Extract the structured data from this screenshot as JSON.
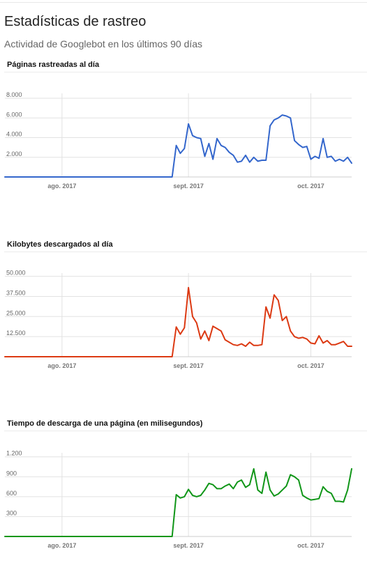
{
  "header": {
    "title": "Estadísticas de rastreo",
    "subtitle": "Actividad de Googlebot en los últimos 90 días"
  },
  "chart_data": [
    {
      "type": "line",
      "title": "Páginas rastreadas al día",
      "color": "#3366cc",
      "xlabel": "",
      "ylabel": "",
      "x_tick_labels": [
        "ago. 2017",
        "sept. 2017",
        "oct. 2017"
      ],
      "x_tick_days": [
        14,
        45,
        75
      ],
      "y_tick_labels": [
        "2.000",
        "4.000",
        "6.000",
        "8.000"
      ],
      "y_ticks": [
        2000,
        4000,
        6000,
        8000
      ],
      "ylim": [
        0,
        8500
      ],
      "grid": true,
      "legend": "none",
      "x": [
        0,
        41,
        42,
        43,
        44,
        45,
        46,
        47,
        48,
        49,
        50,
        51,
        52,
        53,
        54,
        55,
        56,
        57,
        58,
        59,
        60,
        61,
        62,
        63,
        64,
        65,
        66,
        67,
        68,
        69,
        70,
        71,
        72,
        73,
        74,
        75,
        76,
        77,
        78,
        79,
        80,
        81,
        82,
        83,
        84,
        85
      ],
      "values": [
        0,
        0,
        3200,
        2400,
        2900,
        5400,
        4200,
        4000,
        3900,
        2100,
        3400,
        1800,
        3900,
        3200,
        3000,
        2500,
        2200,
        1500,
        1600,
        2200,
        1500,
        2000,
        1600,
        1700,
        1700,
        5200,
        5800,
        6000,
        6300,
        6200,
        6000,
        3700,
        3300,
        3000,
        3100,
        1800,
        2100,
        1900,
        3900,
        2000,
        2100,
        1600,
        1800,
        1600,
        2000,
        1400
      ],
      "xlim": [
        0,
        85
      ]
    },
    {
      "type": "line",
      "title": "Kilobytes descargados al día",
      "color": "#dc3912",
      "xlabel": "",
      "ylabel": "",
      "x_tick_labels": [
        "ago. 2017",
        "sept. 2017",
        "oct. 2017"
      ],
      "x_tick_days": [
        14,
        45,
        75
      ],
      "y_tick_labels": [
        "12.500",
        "25.000",
        "37.500",
        "50.000"
      ],
      "y_ticks": [
        12500,
        25000,
        37500,
        50000
      ],
      "ylim": [
        0,
        52000
      ],
      "grid": true,
      "legend": "none",
      "x": [
        0,
        41,
        42,
        43,
        44,
        45,
        46,
        47,
        48,
        49,
        50,
        51,
        52,
        53,
        54,
        55,
        56,
        57,
        58,
        59,
        60,
        61,
        62,
        63,
        64,
        65,
        66,
        67,
        68,
        69,
        70,
        71,
        72,
        73,
        74,
        75,
        76,
        77,
        78,
        79,
        80,
        81,
        82,
        83,
        84,
        85
      ],
      "values": [
        0,
        0,
        18500,
        14000,
        18000,
        43000,
        25000,
        21000,
        11000,
        16000,
        10000,
        19000,
        17500,
        16000,
        10500,
        9000,
        7500,
        7000,
        8000,
        6500,
        9000,
        7000,
        7000,
        7500,
        31000,
        24000,
        38500,
        35000,
        22500,
        25000,
        16000,
        12500,
        11500,
        12000,
        11000,
        8500,
        8000,
        13000,
        8500,
        10000,
        7500,
        7500,
        8500,
        9500,
        6500,
        6500
      ],
      "xlim": [
        0,
        85
      ]
    },
    {
      "type": "line",
      "title": "Tiempo de descarga de una página (en milisegundos)",
      "color": "#109618",
      "xlabel": "",
      "ylabel": "",
      "x_tick_labels": [
        "ago. 2017",
        "sept. 2017",
        "oct. 2017"
      ],
      "x_tick_days": [
        14,
        45,
        75
      ],
      "y_tick_labels": [
        "300",
        "600",
        "900",
        "1.200"
      ],
      "y_ticks": [
        300,
        600,
        900,
        1200
      ],
      "ylim": [
        0,
        1260
      ],
      "grid": true,
      "legend": "none",
      "x": [
        0,
        41,
        42,
        43,
        44,
        45,
        46,
        47,
        48,
        49,
        50,
        51,
        52,
        53,
        54,
        55,
        56,
        57,
        58,
        59,
        60,
        61,
        62,
        63,
        64,
        65,
        66,
        67,
        68,
        69,
        70,
        71,
        72,
        73,
        74,
        75,
        76,
        77,
        78,
        79,
        80,
        81,
        82,
        83,
        84,
        85
      ],
      "values": [
        0,
        0,
        630,
        580,
        600,
        710,
        620,
        600,
        620,
        700,
        800,
        780,
        720,
        720,
        760,
        790,
        720,
        820,
        850,
        740,
        780,
        1020,
        700,
        650,
        970,
        700,
        610,
        640,
        700,
        760,
        930,
        900,
        850,
        620,
        580,
        550,
        560,
        570,
        750,
        680,
        650,
        530,
        530,
        520,
        700,
        1020
      ],
      "xlim": [
        0,
        85
      ]
    }
  ]
}
